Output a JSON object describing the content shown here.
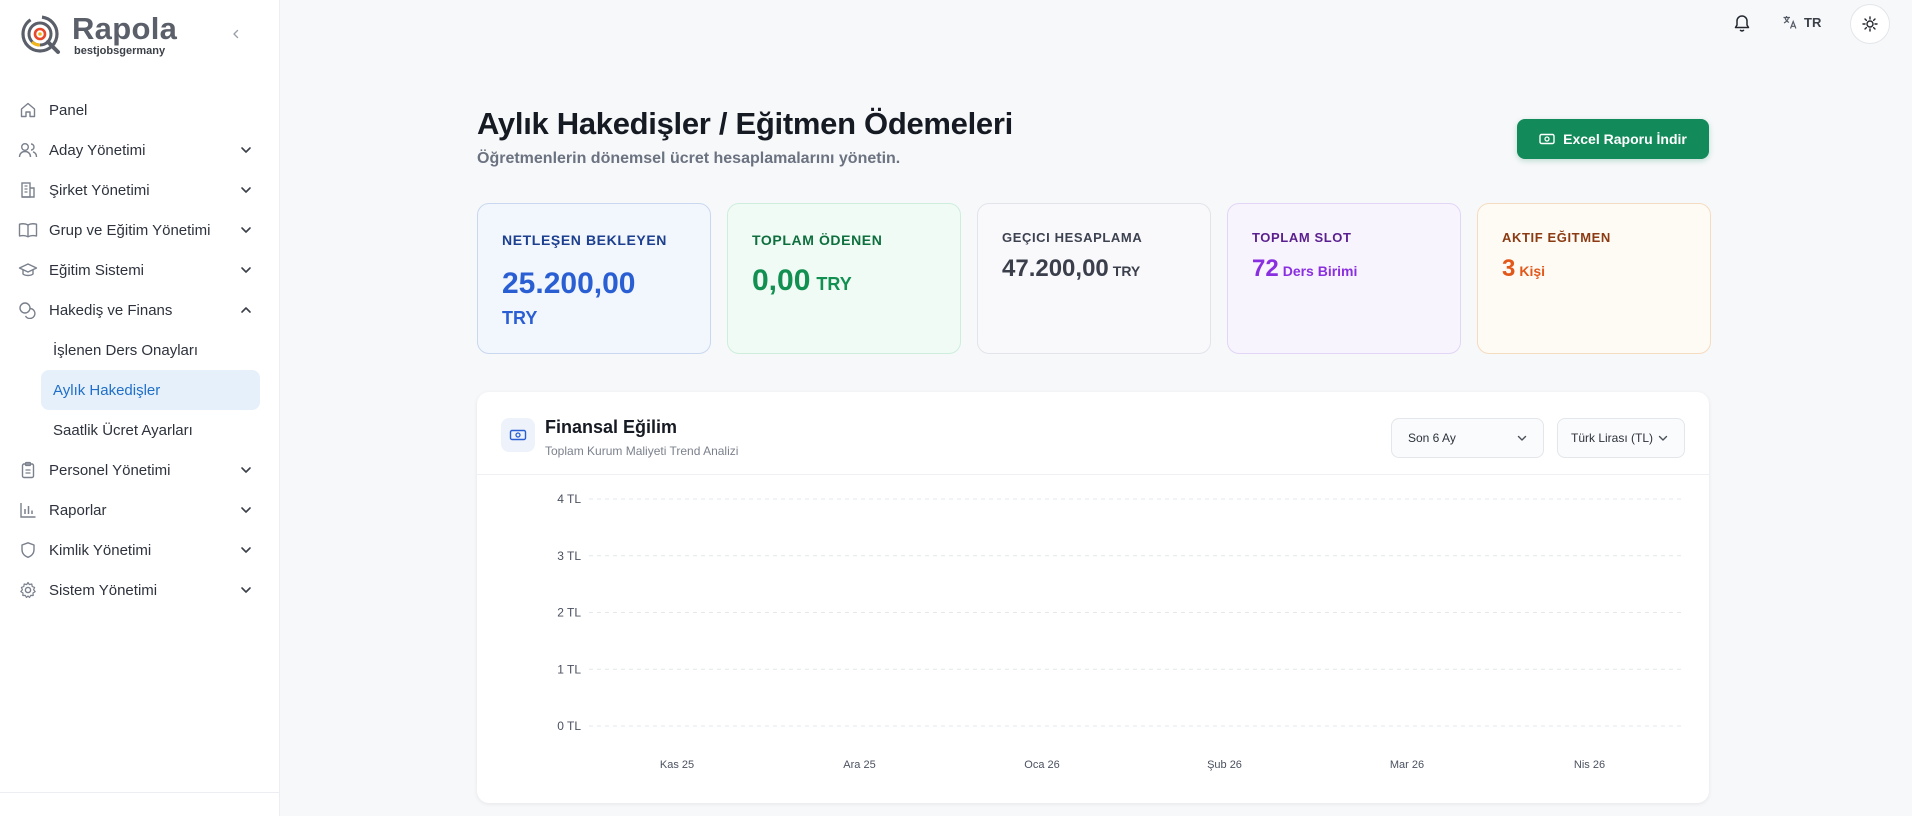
{
  "brand": {
    "name": "Rapola",
    "subtitle": "bestjobsgermany"
  },
  "sidebar": {
    "items": [
      {
        "label": "Panel",
        "icon": "home-icon"
      },
      {
        "label": "Aday Yönetimi",
        "icon": "users-icon"
      },
      {
        "label": "Şirket Yönetimi",
        "icon": "building-icon"
      },
      {
        "label": "Grup ve Eğitim Yönetimi",
        "icon": "book-icon"
      },
      {
        "label": "Eğitim Sistemi",
        "icon": "graduation-cap-icon"
      },
      {
        "label": "Hakediş ve Finans",
        "icon": "coins-icon"
      },
      {
        "label": "Personel Yönetimi",
        "icon": "clipboard-icon"
      },
      {
        "label": "Raporlar",
        "icon": "bar-chart-icon"
      },
      {
        "label": "Kimlik Yönetimi",
        "icon": "shield-icon"
      },
      {
        "label": "Sistem Yönetimi",
        "icon": "gear-icon"
      }
    ],
    "subitems": [
      {
        "label": "İşlenen Ders Onayları"
      },
      {
        "label": "Aylık Hakedişler",
        "active": true
      },
      {
        "label": "Saatlik Ücret Ayarları"
      }
    ]
  },
  "topbar": {
    "language": "TR"
  },
  "header": {
    "title": "Aylık Hakedişler / Eğitmen Ödemeleri",
    "subtitle": "Öğretmenlerin dönemsel ücret hesaplamalarını yönetin.",
    "excel_button": "Excel Raporu İndir"
  },
  "cards": [
    {
      "label": "NETLEŞEN BEKLEYEN",
      "value": "25.200,00",
      "unit": "TRY",
      "color": "#2a5fd3"
    },
    {
      "label": "TOPLAM ÖDENEN",
      "value": "0,00",
      "unit": "TRY",
      "color": "#129052"
    },
    {
      "label": "GEÇICI HESAPLAMA",
      "value": "47.200,00",
      "unit": "TRY",
      "color": "#3a3f4b"
    },
    {
      "label": "TOPLAM SLOT",
      "value": "72",
      "unit": "Ders Birimi",
      "color": "#8a2fe0"
    },
    {
      "label": "AKTIF EĞITMEN",
      "value": "3",
      "unit": "Kişi",
      "color": "#e2581a"
    }
  ],
  "panel": {
    "title": "Finansal Eğilim",
    "subtitle": "Toplam Kurum Maliyeti Trend Analizi",
    "period_select": "Son 6 Ay",
    "currency_select": "Türk Lirası (TL)"
  },
  "chart_data": {
    "type": "line",
    "categories": [
      "Kas 25",
      "Ara 25",
      "Oca 26",
      "Şub 26",
      "Mar 26",
      "Nis 26"
    ],
    "yticks": [
      "0 TL",
      "1 TL",
      "2 TL",
      "3 TL",
      "4 TL"
    ],
    "ylim": [
      0,
      4
    ],
    "series": [],
    "grid": true
  }
}
